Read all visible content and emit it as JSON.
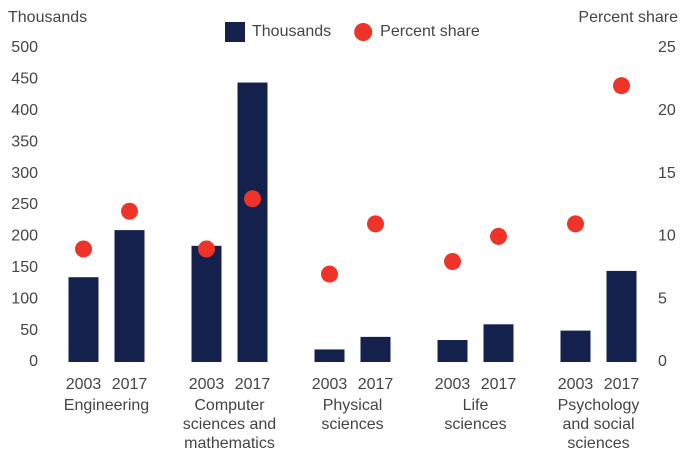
{
  "chart_data": {
    "type": "bar",
    "ylabel": "Thousands",
    "y2label": "Percent share",
    "categories": [
      "2003",
      "2017",
      "2003",
      "2017",
      "2003",
      "2017",
      "2003",
      "2017",
      "2003",
      "2017"
    ],
    "groups": [
      [
        "Engineering"
      ],
      [
        "Computer",
        "sciences and",
        "mathematics"
      ],
      [
        "Physical",
        "sciences"
      ],
      [
        "Life",
        "sciences"
      ],
      [
        "Psychology",
        "and social",
        "sciences"
      ]
    ],
    "series": [
      {
        "name": "Thousands",
        "type": "bar",
        "color": "#14214d",
        "values": [
          135,
          210,
          185,
          445,
          20,
          40,
          35,
          60,
          50,
          145
        ]
      },
      {
        "name": "Percent share",
        "type": "scatter",
        "axis": "y2",
        "color": "#ee3428",
        "values": [
          9,
          12,
          9,
          13,
          7,
          11,
          8,
          10,
          11,
          22
        ]
      }
    ],
    "ylim": [
      0,
      500
    ],
    "yticks": [
      0,
      50,
      100,
      150,
      200,
      250,
      300,
      350,
      400,
      450,
      500
    ],
    "y2lim": [
      0,
      25
    ],
    "y2ticks": [
      0,
      5,
      10,
      15,
      20,
      25
    ],
    "grid": false,
    "legend": "top"
  }
}
